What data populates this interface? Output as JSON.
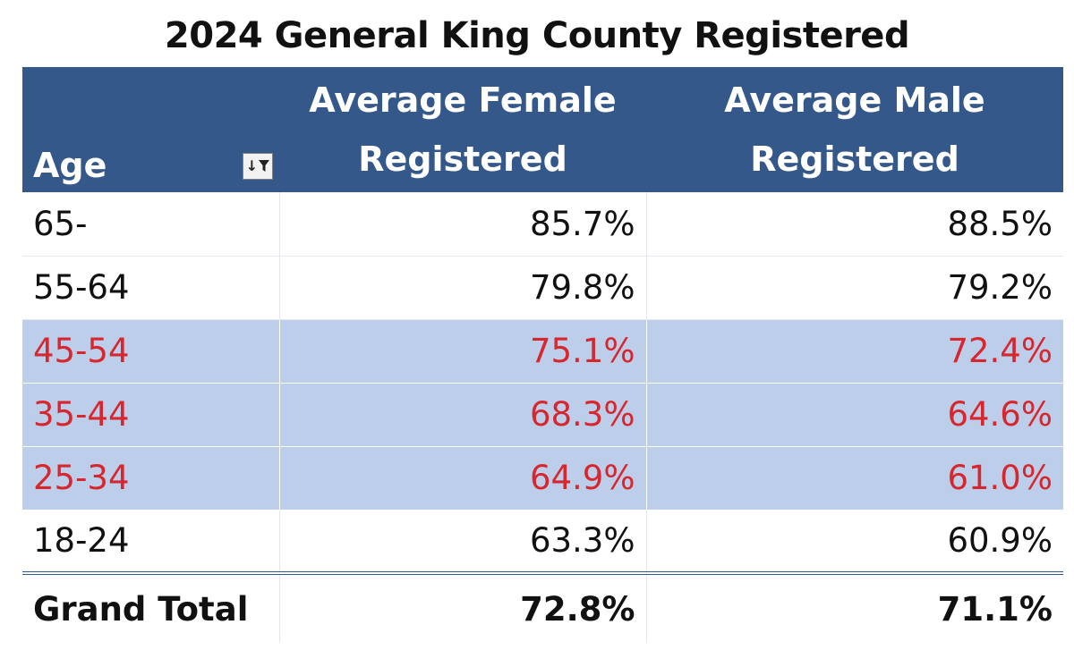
{
  "title": "2024 General King County Registered",
  "header": {
    "age": "Age",
    "female_line1": "Average Female",
    "female_line2": "Registered",
    "male_line1": "Average Male",
    "male_line2": "Registered",
    "filter_icon": "sort-filter-icon"
  },
  "colors": {
    "header_bg": "#35588b",
    "highlight_bg": "#bcceea",
    "highlight_text": "#d7262e"
  },
  "chart_data": {
    "type": "table",
    "title": "2024 General King County Registered",
    "columns": [
      "Age",
      "Average Female Registered",
      "Average Male Registered"
    ],
    "rows": [
      {
        "age": "65-",
        "female": "85.7%",
        "male": "88.5%",
        "highlight": false
      },
      {
        "age": "55-64",
        "female": "79.8%",
        "male": "79.2%",
        "highlight": false
      },
      {
        "age": "45-54",
        "female": "75.1%",
        "male": "72.4%",
        "highlight": true
      },
      {
        "age": "35-44",
        "female": "68.3%",
        "male": "64.6%",
        "highlight": true
      },
      {
        "age": "25-34",
        "female": "64.9%",
        "male": "61.0%",
        "highlight": true
      },
      {
        "age": "18-24",
        "female": "63.3%",
        "male": "60.9%",
        "highlight": false
      }
    ],
    "total": {
      "label": "Grand Total",
      "female": "72.8%",
      "male": "71.1%"
    }
  }
}
